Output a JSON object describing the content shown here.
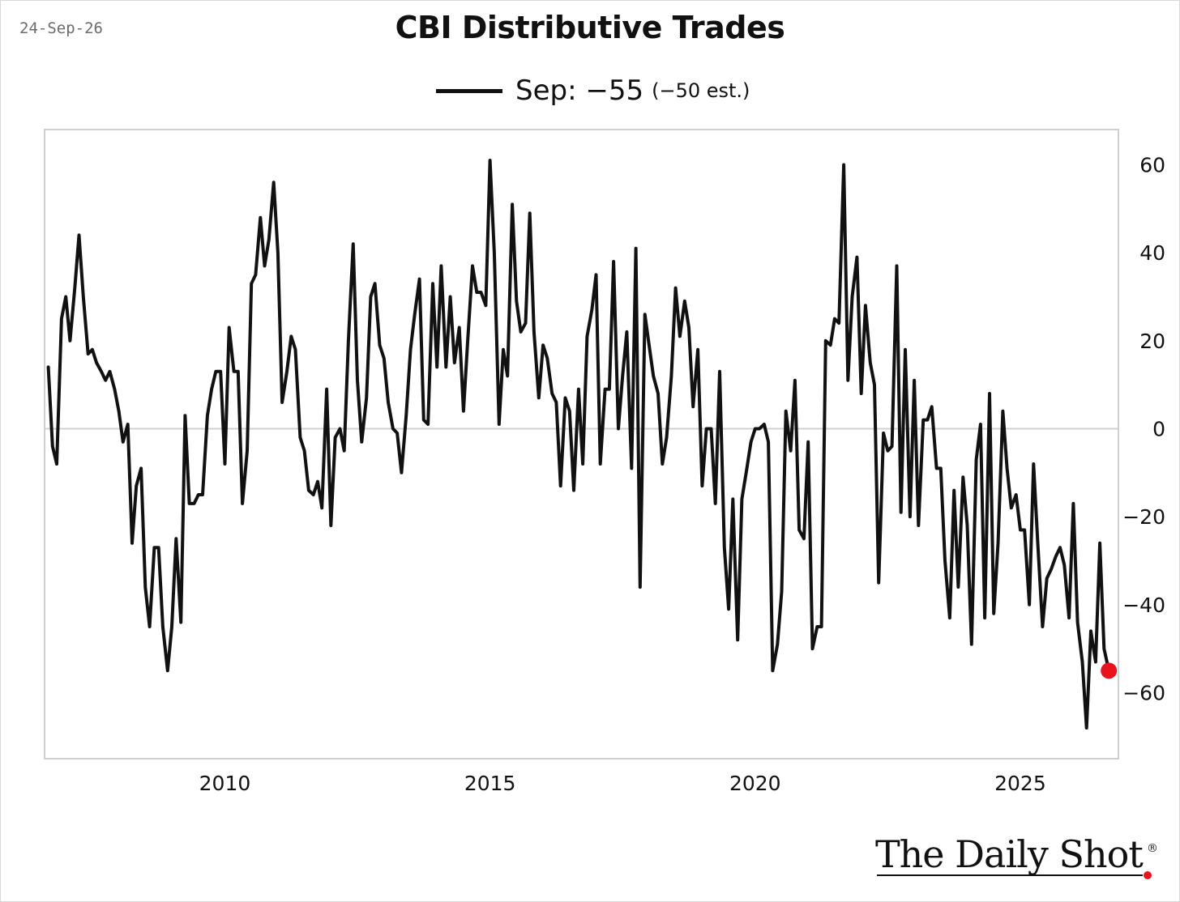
{
  "date_label": "24-Sep-26",
  "brand": {
    "name": "The Daily Shot",
    "reg_mark": "®",
    "accent_color": "#e8131c"
  },
  "chart_data": {
    "type": "line",
    "title": "CBI Distributive Trades",
    "legend": {
      "label": "Sep: −55",
      "note": "(−50 est.)",
      "placement": "top-center"
    },
    "xlabel": "",
    "ylabel": "",
    "xlim": [
      2006.6,
      2026.85
    ],
    "ylim": [
      -75,
      68
    ],
    "x_ticks": [
      2010,
      2015,
      2020,
      2025
    ],
    "y_ticks": [
      60,
      40,
      20,
      0,
      -20,
      -40,
      -60
    ],
    "y_axis_side": "right",
    "grid": false,
    "zero_line": true,
    "line_color": "#111111",
    "last_point_color": "#e8131c",
    "series": [
      {
        "values": [
          [
            2006.67,
            14
          ],
          [
            2006.75,
            -4
          ],
          [
            2006.83,
            -8
          ],
          [
            2006.92,
            25
          ],
          [
            2007.0,
            30
          ],
          [
            2007.08,
            20
          ],
          [
            2007.17,
            32
          ],
          [
            2007.25,
            44
          ],
          [
            2007.33,
            30
          ],
          [
            2007.42,
            17
          ],
          [
            2007.5,
            18
          ],
          [
            2007.58,
            15
          ],
          [
            2007.67,
            13
          ],
          [
            2007.75,
            11
          ],
          [
            2007.83,
            13
          ],
          [
            2007.92,
            9
          ],
          [
            2008.0,
            4
          ],
          [
            2008.08,
            -3
          ],
          [
            2008.17,
            1
          ],
          [
            2008.25,
            -26
          ],
          [
            2008.33,
            -13
          ],
          [
            2008.42,
            -9
          ],
          [
            2008.5,
            -36
          ],
          [
            2008.58,
            -45
          ],
          [
            2008.67,
            -27
          ],
          [
            2008.75,
            -27
          ],
          [
            2008.83,
            -45
          ],
          [
            2008.92,
            -55
          ],
          [
            2009.0,
            -45
          ],
          [
            2009.08,
            -25
          ],
          [
            2009.17,
            -44
          ],
          [
            2009.25,
            3
          ],
          [
            2009.33,
            -17
          ],
          [
            2009.42,
            -17
          ],
          [
            2009.5,
            -15
          ],
          [
            2009.58,
            -15
          ],
          [
            2009.67,
            3
          ],
          [
            2009.75,
            9
          ],
          [
            2009.83,
            13
          ],
          [
            2009.92,
            13
          ],
          [
            2010.0,
            -8
          ],
          [
            2010.08,
            23
          ],
          [
            2010.17,
            13
          ],
          [
            2010.25,
            13
          ],
          [
            2010.33,
            -17
          ],
          [
            2010.42,
            -5
          ],
          [
            2010.5,
            33
          ],
          [
            2010.58,
            35
          ],
          [
            2010.67,
            48
          ],
          [
            2010.75,
            37
          ],
          [
            2010.83,
            43
          ],
          [
            2010.92,
            56
          ],
          [
            2011.0,
            40
          ],
          [
            2011.08,
            6
          ],
          [
            2011.17,
            13
          ],
          [
            2011.25,
            21
          ],
          [
            2011.33,
            18
          ],
          [
            2011.42,
            -2
          ],
          [
            2011.5,
            -5
          ],
          [
            2011.58,
            -14
          ],
          [
            2011.67,
            -15
          ],
          [
            2011.75,
            -12
          ],
          [
            2011.83,
            -18
          ],
          [
            2011.92,
            9
          ],
          [
            2012.0,
            -22
          ],
          [
            2012.08,
            -2
          ],
          [
            2012.17,
            0
          ],
          [
            2012.25,
            -5
          ],
          [
            2012.33,
            20
          ],
          [
            2012.42,
            42
          ],
          [
            2012.5,
            11
          ],
          [
            2012.58,
            -3
          ],
          [
            2012.67,
            7
          ],
          [
            2012.75,
            30
          ],
          [
            2012.83,
            33
          ],
          [
            2012.92,
            19
          ],
          [
            2013.0,
            16
          ],
          [
            2013.08,
            6
          ],
          [
            2013.17,
            0
          ],
          [
            2013.25,
            -1
          ],
          [
            2013.33,
            -10
          ],
          [
            2013.42,
            3
          ],
          [
            2013.5,
            18
          ],
          [
            2013.58,
            26
          ],
          [
            2013.67,
            34
          ],
          [
            2013.75,
            2
          ],
          [
            2013.83,
            1
          ],
          [
            2013.92,
            33
          ],
          [
            2014.0,
            14
          ],
          [
            2014.08,
            37
          ],
          [
            2014.17,
            14
          ],
          [
            2014.25,
            30
          ],
          [
            2014.33,
            15
          ],
          [
            2014.42,
            23
          ],
          [
            2014.5,
            4
          ],
          [
            2014.58,
            20
          ],
          [
            2014.67,
            37
          ],
          [
            2014.75,
            31
          ],
          [
            2014.83,
            31
          ],
          [
            2014.92,
            28
          ],
          [
            2015.0,
            61
          ],
          [
            2015.08,
            40
          ],
          [
            2015.17,
            1
          ],
          [
            2015.25,
            18
          ],
          [
            2015.33,
            12
          ],
          [
            2015.42,
            51
          ],
          [
            2015.5,
            29
          ],
          [
            2015.58,
            22
          ],
          [
            2015.67,
            24
          ],
          [
            2015.75,
            49
          ],
          [
            2015.83,
            22
          ],
          [
            2015.92,
            7
          ],
          [
            2016.0,
            19
          ],
          [
            2016.08,
            16
          ],
          [
            2016.17,
            8
          ],
          [
            2016.25,
            6
          ],
          [
            2016.33,
            -13
          ],
          [
            2016.42,
            7
          ],
          [
            2016.5,
            4
          ],
          [
            2016.58,
            -14
          ],
          [
            2016.67,
            9
          ],
          [
            2016.75,
            -8
          ],
          [
            2016.83,
            21
          ],
          [
            2016.92,
            27
          ],
          [
            2017.0,
            35
          ],
          [
            2017.08,
            -8
          ],
          [
            2017.17,
            9
          ],
          [
            2017.25,
            9
          ],
          [
            2017.33,
            38
          ],
          [
            2017.42,
            0
          ],
          [
            2017.5,
            12
          ],
          [
            2017.58,
            22
          ],
          [
            2017.67,
            -9
          ],
          [
            2017.75,
            41
          ],
          [
            2017.83,
            -36
          ],
          [
            2017.92,
            26
          ],
          [
            2018.0,
            19
          ],
          [
            2018.08,
            12
          ],
          [
            2018.17,
            8
          ],
          [
            2018.25,
            -8
          ],
          [
            2018.33,
            -2
          ],
          [
            2018.42,
            12
          ],
          [
            2018.5,
            32
          ],
          [
            2018.58,
            21
          ],
          [
            2018.67,
            29
          ],
          [
            2018.75,
            23
          ],
          [
            2018.83,
            5
          ],
          [
            2018.92,
            18
          ],
          [
            2019.0,
            -13
          ],
          [
            2019.08,
            0
          ],
          [
            2019.17,
            0
          ],
          [
            2019.25,
            -17
          ],
          [
            2019.33,
            13
          ],
          [
            2019.42,
            -27
          ],
          [
            2019.5,
            -41
          ],
          [
            2019.58,
            -16
          ],
          [
            2019.67,
            -48
          ],
          [
            2019.75,
            -16
          ],
          [
            2019.83,
            -10
          ],
          [
            2019.92,
            -3
          ],
          [
            2020.0,
            0
          ],
          [
            2020.08,
            0
          ],
          [
            2020.17,
            1
          ],
          [
            2020.25,
            -3
          ],
          [
            2020.33,
            -55
          ],
          [
            2020.42,
            -49
          ],
          [
            2020.5,
            -37
          ],
          [
            2020.58,
            4
          ],
          [
            2020.67,
            -5
          ],
          [
            2020.75,
            11
          ],
          [
            2020.83,
            -23
          ],
          [
            2020.92,
            -25
          ],
          [
            2021.0,
            -3
          ],
          [
            2021.08,
            -50
          ],
          [
            2021.17,
            -45
          ],
          [
            2021.25,
            -45
          ],
          [
            2021.33,
            20
          ],
          [
            2021.42,
            19
          ],
          [
            2021.5,
            25
          ],
          [
            2021.58,
            24
          ],
          [
            2021.67,
            60
          ],
          [
            2021.75,
            11
          ],
          [
            2021.83,
            30
          ],
          [
            2021.92,
            39
          ],
          [
            2022.0,
            8
          ],
          [
            2022.08,
            28
          ],
          [
            2022.17,
            15
          ],
          [
            2022.25,
            10
          ],
          [
            2022.33,
            -35
          ],
          [
            2022.42,
            -1
          ],
          [
            2022.5,
            -5
          ],
          [
            2022.58,
            -4
          ],
          [
            2022.67,
            37
          ],
          [
            2022.75,
            -19
          ],
          [
            2022.83,
            18
          ],
          [
            2022.92,
            -20
          ],
          [
            2023.0,
            11
          ],
          [
            2023.08,
            -22
          ],
          [
            2023.17,
            2
          ],
          [
            2023.25,
            2
          ],
          [
            2023.33,
            5
          ],
          [
            2023.42,
            -9
          ],
          [
            2023.5,
            -9
          ],
          [
            2023.58,
            -30
          ],
          [
            2023.67,
            -43
          ],
          [
            2023.75,
            -14
          ],
          [
            2023.83,
            -36
          ],
          [
            2023.92,
            -11
          ],
          [
            2024.0,
            -22
          ],
          [
            2024.08,
            -49
          ],
          [
            2024.17,
            -7
          ],
          [
            2024.25,
            1
          ],
          [
            2024.33,
            -43
          ],
          [
            2024.42,
            8
          ],
          [
            2024.5,
            -42
          ],
          [
            2024.58,
            -26
          ],
          [
            2024.67,
            4
          ],
          [
            2024.75,
            -9
          ],
          [
            2024.83,
            -18
          ],
          [
            2024.92,
            -15
          ],
          [
            2025.0,
            -23
          ],
          [
            2025.08,
            -23
          ],
          [
            2025.17,
            -40
          ],
          [
            2025.25,
            -8
          ],
          [
            2025.33,
            -26
          ],
          [
            2025.42,
            -45
          ],
          [
            2025.5,
            -34
          ],
          [
            2025.58,
            -32
          ],
          [
            2025.67,
            -29
          ],
          [
            2025.75,
            -27
          ],
          [
            2025.83,
            -31
          ],
          [
            2025.92,
            -43
          ],
          [
            2026.0,
            -17
          ],
          [
            2026.08,
            -44
          ],
          [
            2026.17,
            -53
          ],
          [
            2026.25,
            -68
          ],
          [
            2026.33,
            -46
          ],
          [
            2026.42,
            -53
          ],
          [
            2026.5,
            -26
          ],
          [
            2026.58,
            -50
          ],
          [
            2026.67,
            -55
          ]
        ]
      }
    ]
  }
}
